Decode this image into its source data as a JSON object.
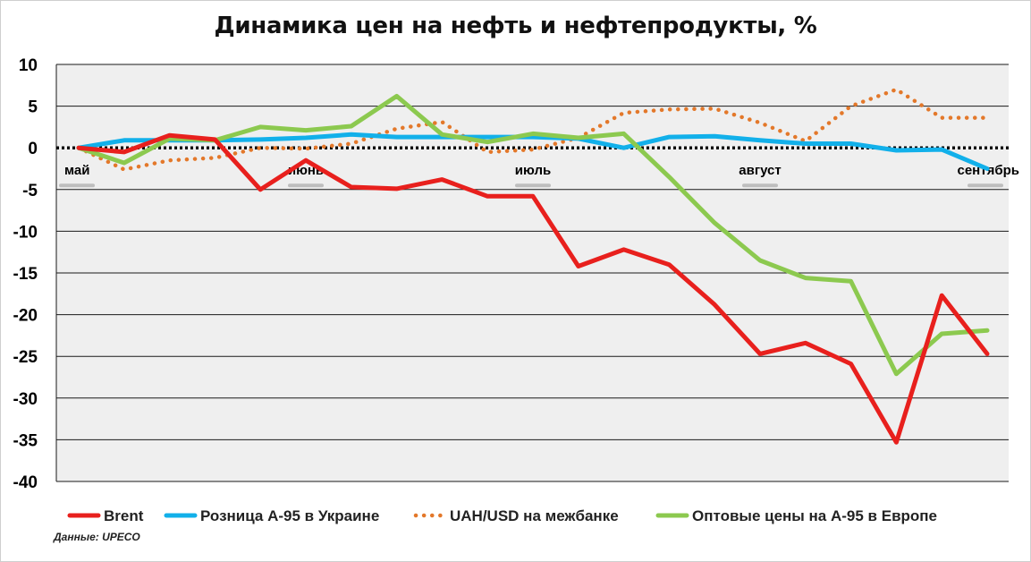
{
  "chart_data": {
    "type": "line",
    "title": "Динамика цен на нефть и нефтепродукты, %",
    "ylim": [
      -40,
      10
    ],
    "y_ticks": [
      10,
      5,
      0,
      -5,
      -10,
      -15,
      -20,
      -25,
      -30,
      -35,
      -40
    ],
    "grid": true,
    "legend_position": "bottom",
    "x_month_labels": [
      {
        "label": "май",
        "index": 0
      },
      {
        "label": "июнь",
        "index": 5
      },
      {
        "label": "июль",
        "index": 10
      },
      {
        "label": "август",
        "index": 15
      },
      {
        "label": "сентябрь",
        "index": 20
      }
    ],
    "series": [
      {
        "name": "Brent",
        "color": "#e8201d",
        "style": "solid",
        "values": [
          0,
          -0.5,
          1.5,
          1.0,
          -5.0,
          -1.5,
          -4.7,
          -4.9,
          -3.8,
          -5.8,
          -5.8,
          -14.2,
          -12.2,
          -14.0,
          -18.8,
          -24.7,
          -23.4,
          -25.9,
          -35.3,
          -17.7,
          -24.7
        ]
      },
      {
        "name": "Розница А-95 в Украине",
        "color": "#12b0ea",
        "style": "solid",
        "values": [
          0,
          0.9,
          0.9,
          0.9,
          1.0,
          1.2,
          1.6,
          1.3,
          1.3,
          1.3,
          1.3,
          1.1,
          0,
          1.3,
          1.4,
          0.9,
          0.5,
          0.5,
          -0.3,
          -0.2,
          -2.5
        ]
      },
      {
        "name": "UAH/USD на межбанке",
        "color": "#e3782a",
        "style": "dotted",
        "values": [
          0,
          -2.6,
          -1.5,
          -1.2,
          0,
          -0.1,
          0.5,
          2.3,
          3.1,
          -0.5,
          -0.2,
          1.2,
          4.2,
          4.6,
          4.7,
          3.0,
          0.8,
          5.0,
          7.0,
          3.6,
          3.6
        ]
      },
      {
        "name": "Оптовые цены на А-95 в Европе",
        "color": "#8cc94f",
        "style": "solid",
        "values": [
          0,
          -1.8,
          1.1,
          0.9,
          2.5,
          2.1,
          2.6,
          6.2,
          1.6,
          0.7,
          1.7,
          1.2,
          1.7,
          -3.5,
          -9.0,
          -13.5,
          -15.6,
          -16.0,
          -27.1,
          -22.3,
          -21.9
        ]
      }
    ]
  },
  "source_note": "Данные: UPECO"
}
